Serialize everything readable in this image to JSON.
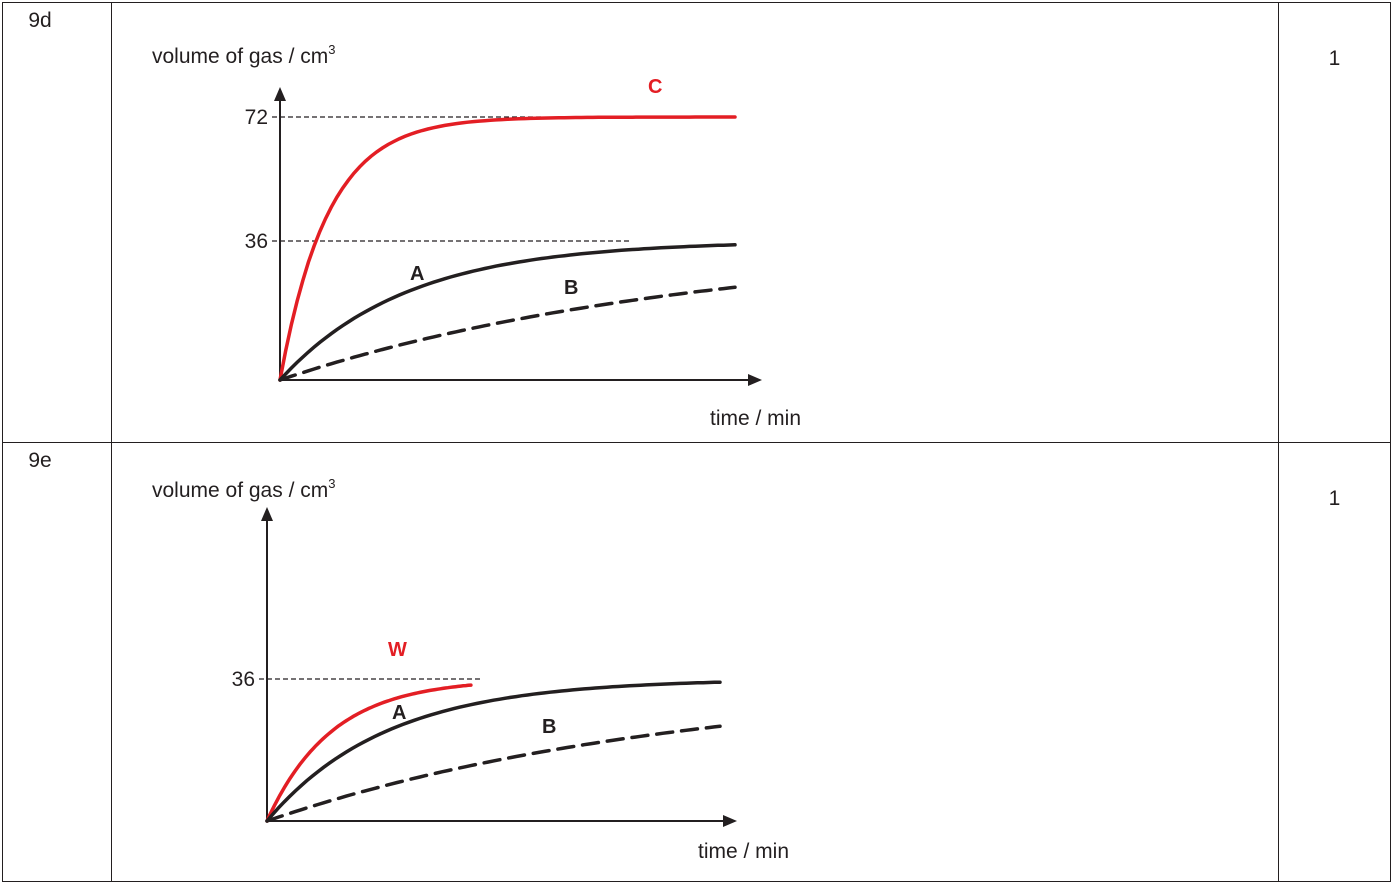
{
  "rows": [
    {
      "question": "9d",
      "mark": "1"
    },
    {
      "question": "9e",
      "mark": "1"
    }
  ],
  "chart_data": [
    {
      "type": "line",
      "ylabel": "volume of gas / cm",
      "ylabel_sup": "3",
      "xlabel": "time / min",
      "yticks": [
        {
          "value": 72,
          "label": "72"
        },
        {
          "value": 36,
          "label": "36"
        }
      ],
      "ylim": [
        0,
        72
      ],
      "grid": false,
      "series": [
        {
          "name": "C",
          "color": "#e31e24",
          "style": "solid",
          "plateau": 72,
          "extent": 10,
          "rate": 0.95
        },
        {
          "name": "A",
          "color": "#231f20",
          "style": "solid",
          "plateau": 36,
          "extent": 10,
          "rate": 0.36
        },
        {
          "name": "B",
          "color": "#231f20",
          "style": "dashed",
          "plateau": 36,
          "extent": 10,
          "rate": 0.11
        }
      ]
    },
    {
      "type": "line",
      "ylabel": "volume of gas / cm",
      "ylabel_sup": "3",
      "xlabel": "time / min",
      "yticks": [
        {
          "value": 36,
          "label": "36"
        }
      ],
      "ylim": [
        0,
        36
      ],
      "grid": false,
      "series": [
        {
          "name": "W",
          "color": "#e31e24",
          "style": "solid",
          "plateau": 36,
          "extent": 4.5,
          "rate": 0.7
        },
        {
          "name": "A",
          "color": "#231f20",
          "style": "solid",
          "plateau": 36,
          "extent": 10,
          "rate": 0.38
        },
        {
          "name": "B",
          "color": "#231f20",
          "style": "dashed",
          "plateau": 36,
          "extent": 10,
          "rate": 0.11
        }
      ]
    }
  ]
}
